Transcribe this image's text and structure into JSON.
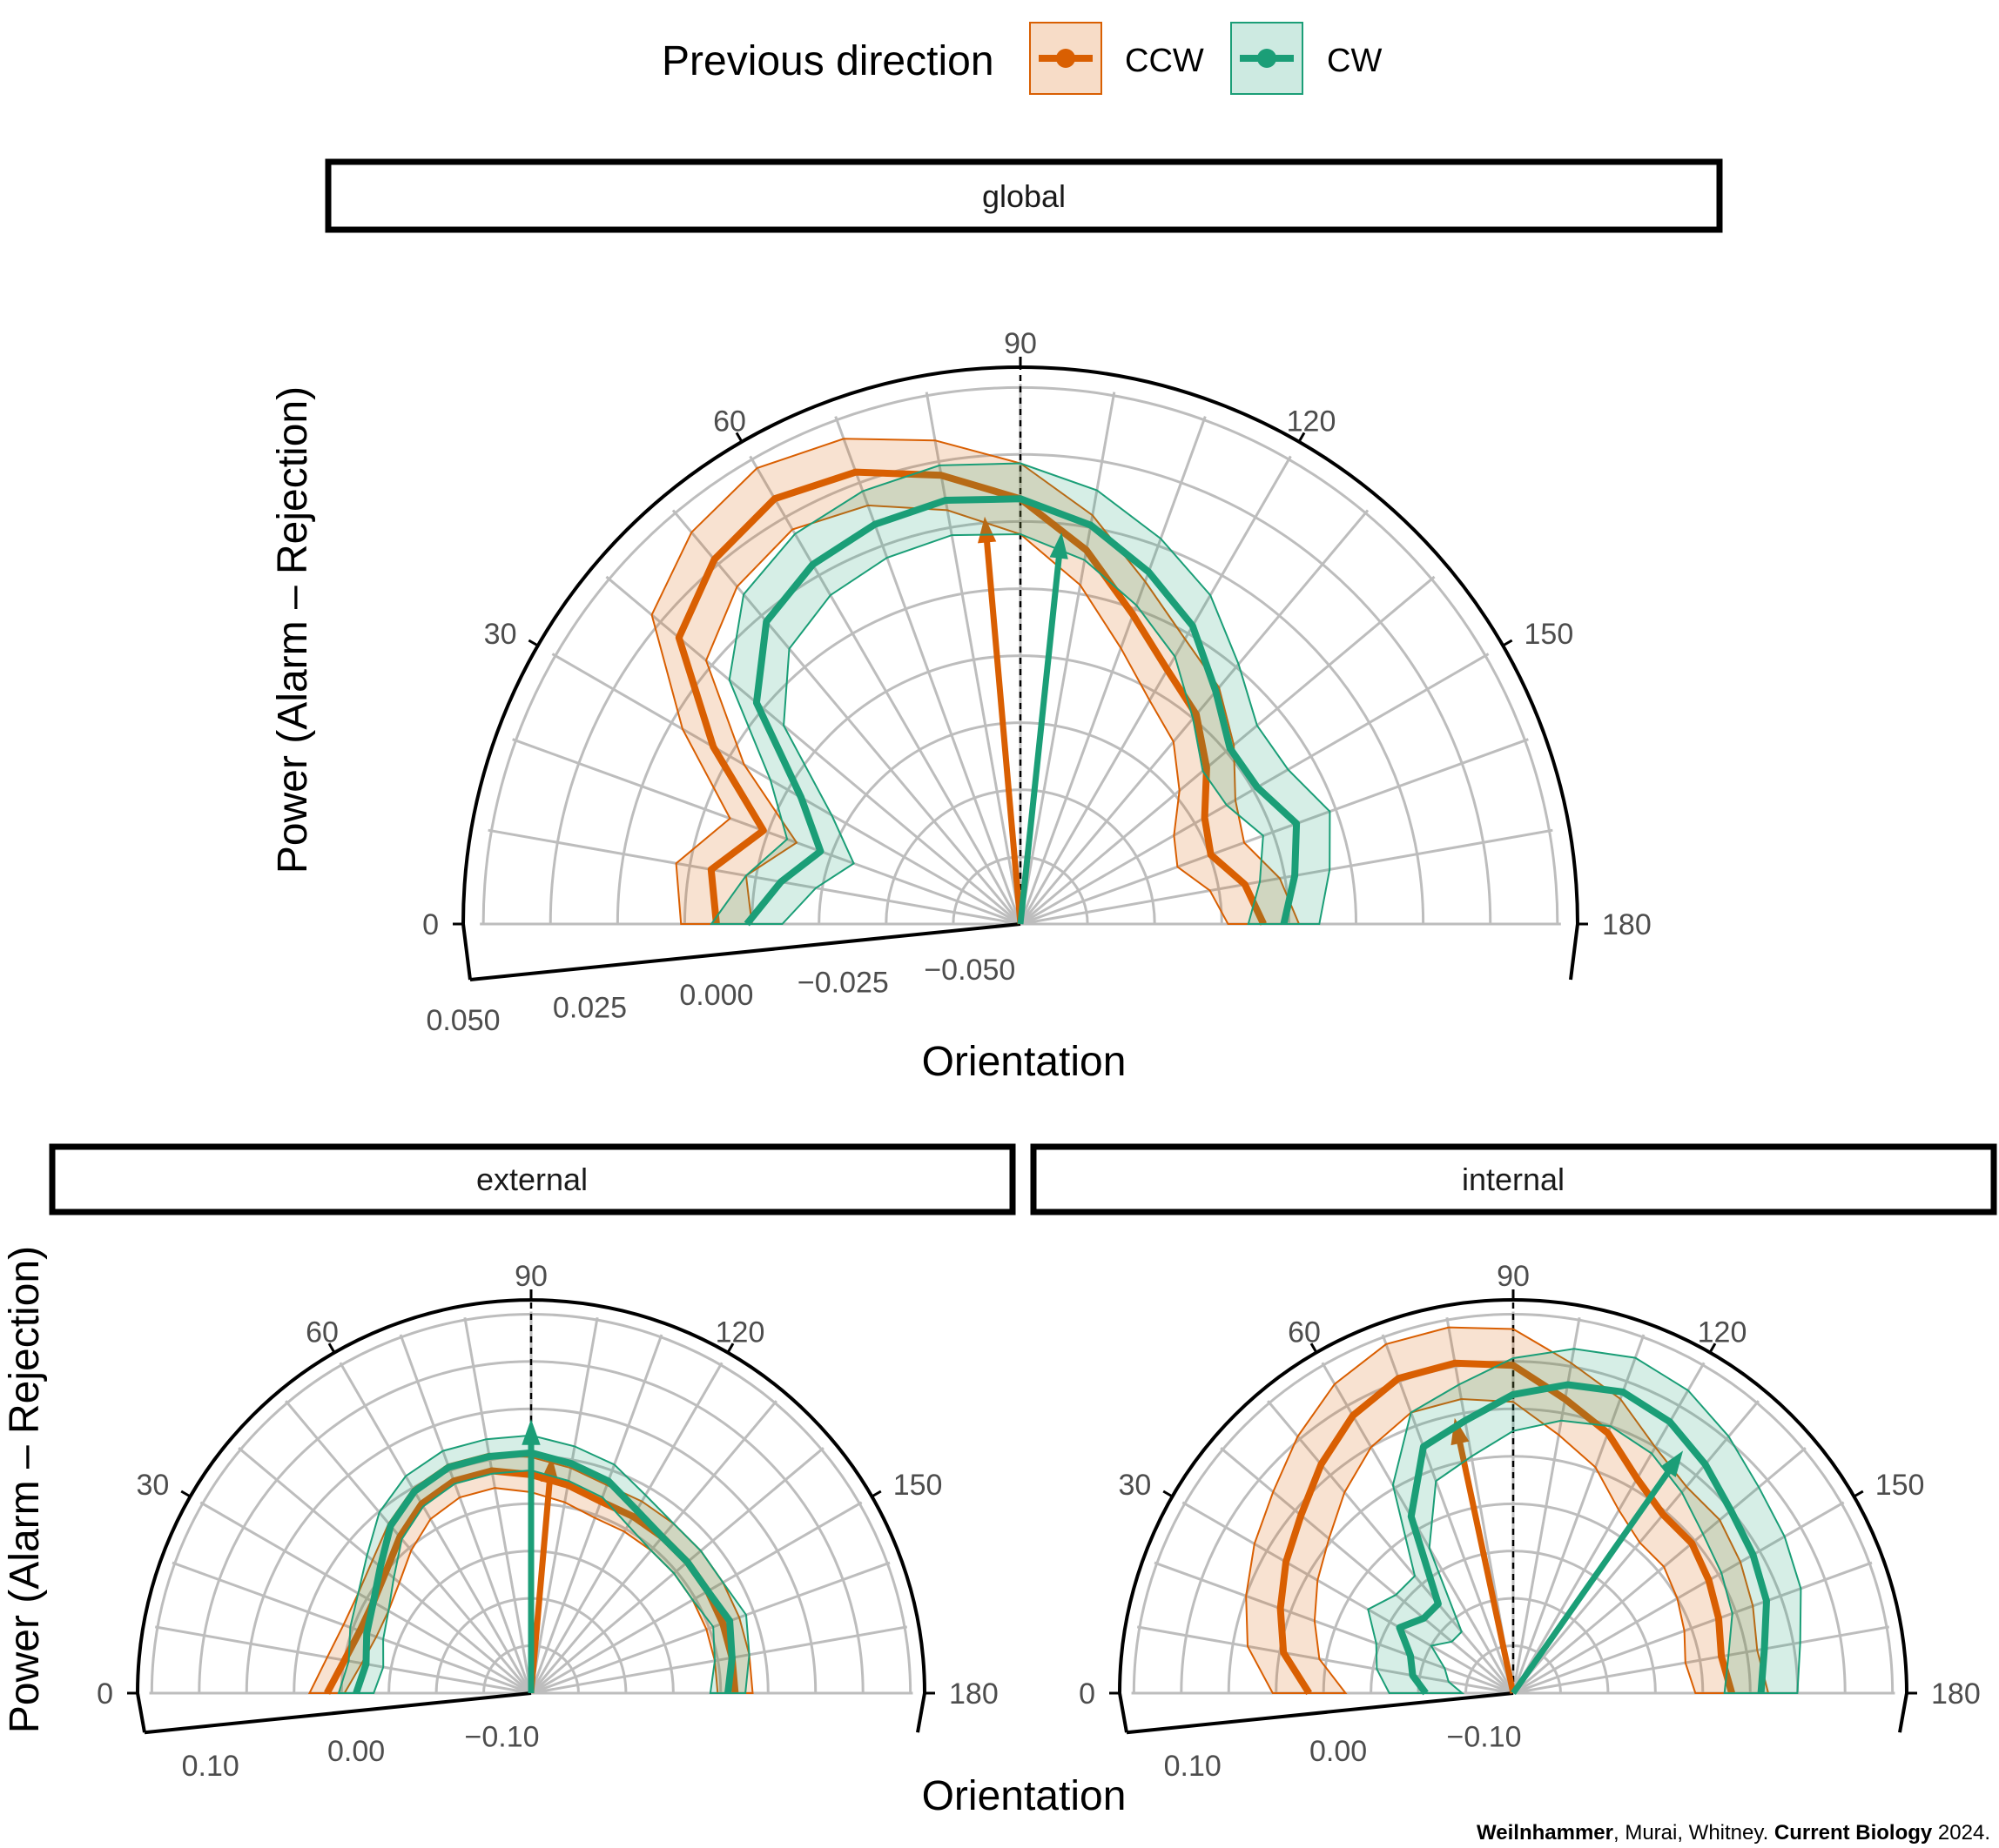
{
  "legend": {
    "title": "Previous direction",
    "items": [
      {
        "label": "CCW",
        "color": "#d95f02"
      },
      {
        "label": "CW",
        "color": "#1b9e77"
      }
    ]
  },
  "credit": {
    "author_bold": "Weilnhammer",
    "rest": ", Murai, Whitney. ",
    "journal": "Current Biology",
    "year": " 2024."
  },
  "chart_data": [
    {
      "type": "line",
      "coord": "polar",
      "title": "global",
      "xlabel": "Orientation",
      "ylabel": "Power (Alarm – Rejection)",
      "theta_ticks": [
        "0",
        "30",
        "60",
        "90",
        "120",
        "150",
        "180"
      ],
      "r_ticks": [
        "−0.050",
        "−0.025",
        "0.000",
        "0.025",
        "0.050"
      ],
      "r_values": [
        -0.05,
        -0.025,
        0.0,
        0.025,
        0.05
      ],
      "rlim": [
        -0.06,
        0.05
      ],
      "theta_range": [
        0,
        180
      ],
      "grid": true,
      "reference_line": 90,
      "series": [
        {
          "name": "CCW",
          "theta": [
            0,
            10,
            20,
            30,
            40,
            50,
            60,
            70,
            80,
            90,
            100,
            110,
            120,
            130,
            140,
            150,
            160,
            170,
            180
          ],
          "values": [
            0.0,
            0.002,
            -0.006,
            0.01,
            0.028,
            0.034,
            0.037,
            0.035,
            0.03,
            0.024,
            0.015,
            0.005,
            -0.002,
            -0.006,
            -0.012,
            -0.018,
            -0.02,
            -0.015,
            -0.012
          ],
          "band_halfwidth": 0.007,
          "arrow": {
            "theta": 85,
            "r": 0.017
          }
        },
        {
          "name": "CW",
          "theta": [
            0,
            10,
            20,
            30,
            40,
            50,
            60,
            70,
            80,
            90,
            100,
            110,
            120,
            130,
            140,
            150,
            160,
            170,
            180
          ],
          "values": [
            -0.006,
            -0.012,
            -0.018,
            -0.01,
            0.008,
            0.018,
            0.022,
            0.024,
            0.025,
            0.024,
            0.02,
            0.014,
            0.008,
            0.0,
            -0.006,
            -0.006,
            -0.002,
            -0.005,
            -0.008
          ],
          "band_halfwidth": 0.007,
          "arrow": {
            "theta": 96,
            "r": 0.014
          }
        }
      ]
    },
    {
      "type": "line",
      "coord": "polar",
      "title": "external",
      "xlabel": "Orientation",
      "ylabel": "Power (Alarm – Rejection)",
      "theta_ticks": [
        "0",
        "30",
        "60",
        "90",
        "120",
        "150",
        "180"
      ],
      "r_ticks": [
        "−0.10",
        "0.00",
        "0.10"
      ],
      "r_values": [
        -0.1,
        0.0,
        0.1
      ],
      "rlim": [
        -0.12,
        0.15
      ],
      "theta_range": [
        0,
        180
      ],
      "grid": true,
      "reference_line": 90,
      "series": [
        {
          "name": "CCW",
          "theta": [
            0,
            10,
            20,
            30,
            40,
            50,
            60,
            70,
            80,
            90,
            100,
            110,
            120,
            130,
            140,
            150,
            160,
            170,
            180
          ],
          "values": [
            0.02,
            0.01,
            0.005,
            0.005,
            0.01,
            0.02,
            0.03,
            0.035,
            0.035,
            0.03,
            0.025,
            0.02,
            0.02,
            0.02,
            0.02,
            0.02,
            0.02,
            0.02,
            0.02
          ],
          "band_halfwidth": 0.012,
          "arrow": {
            "theta": 95,
            "r": 0.03
          }
        },
        {
          "name": "CW",
          "theta": [
            0,
            10,
            20,
            30,
            40,
            50,
            60,
            70,
            80,
            90,
            100,
            110,
            120,
            130,
            140,
            150,
            160,
            170,
            180
          ],
          "values": [
            0.0,
            -0.005,
            0.0,
            0.005,
            0.015,
            0.03,
            0.04,
            0.045,
            0.045,
            0.045,
            0.04,
            0.035,
            0.025,
            0.02,
            0.02,
            0.02,
            0.025,
            0.02,
            0.015
          ],
          "band_halfwidth": 0.012,
          "arrow": {
            "theta": 90,
            "r": 0.055
          }
        }
      ]
    },
    {
      "type": "line",
      "coord": "polar",
      "title": "internal",
      "xlabel": "Orientation",
      "ylabel": "Power (Alarm – Rejection)",
      "theta_ticks": [
        "0",
        "30",
        "60",
        "90",
        "120",
        "150",
        "180"
      ],
      "r_ticks": [
        "−0.10",
        "0.00",
        "0.10"
      ],
      "r_values": [
        -0.1,
        0.0,
        0.1
      ],
      "rlim": [
        -0.12,
        0.15
      ],
      "theta_range": [
        0,
        180
      ],
      "grid": true,
      "reference_line": 90,
      "series": [
        {
          "name": "CCW",
          "theta": [
            0,
            10,
            20,
            30,
            40,
            50,
            60,
            70,
            80,
            90,
            100,
            110,
            120,
            130,
            140,
            150,
            160,
            170,
            180
          ],
          "values": [
            0.02,
            0.04,
            0.05,
            0.06,
            0.07,
            0.085,
            0.1,
            0.11,
            0.11,
            0.105,
            0.085,
            0.07,
            0.05,
            0.04,
            0.04,
            0.035,
            0.03,
            0.025,
            0.03
          ],
          "band_halfwidth": 0.025,
          "arrow": {
            "theta": 78,
            "r": 0.06
          }
        },
        {
          "name": "CW",
          "theta": [
            0,
            10,
            20,
            30,
            40,
            50,
            60,
            70,
            80,
            90,
            100,
            110,
            120,
            130,
            140,
            150,
            160,
            170,
            180
          ],
          "values": [
            -0.06,
            -0.05,
            -0.045,
            -0.03,
            -0.04,
            -0.04,
            0.02,
            0.06,
            0.07,
            0.085,
            0.095,
            0.1,
            0.095,
            0.085,
            0.075,
            0.07,
            0.065,
            0.055,
            0.05
          ],
          "band_halfwidth": 0.025,
          "arrow": {
            "theta": 125,
            "r": 0.07
          }
        }
      ]
    }
  ]
}
